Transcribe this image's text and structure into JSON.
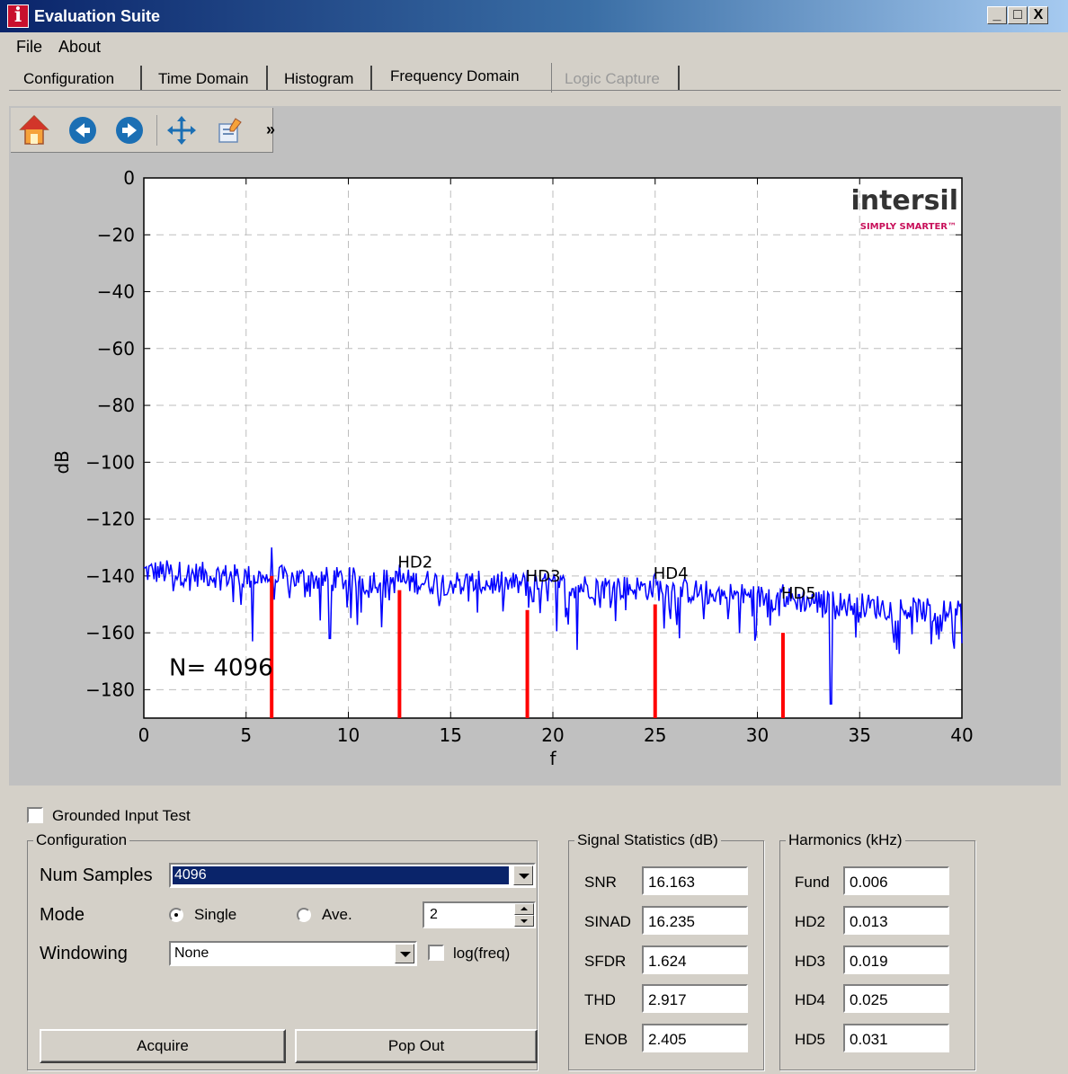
{
  "window": {
    "title": "Evaluation Suite",
    "controls": [
      "_",
      "□",
      "X"
    ]
  },
  "menu": {
    "file": "File",
    "about": "About"
  },
  "tabs": [
    {
      "label": "Configuration"
    },
    {
      "label": "Time Domain"
    },
    {
      "label": "Histogram"
    },
    {
      "label": "Frequency Domain",
      "active": true
    },
    {
      "label": "Logic Capture",
      "disabled": true
    }
  ],
  "toolbar": {
    "icons": [
      "home-icon",
      "back-arrow-icon",
      "forward-arrow-icon",
      "pan-icon",
      "configure-subplots-icon"
    ],
    "more": "»"
  },
  "chart_data": {
    "type": "line",
    "xlabel": "f",
    "ylabel": "dB",
    "xlim": [
      0,
      40
    ],
    "ylim": [
      -190,
      0
    ],
    "xticks": [
      0,
      5,
      10,
      15,
      20,
      25,
      30,
      35,
      40
    ],
    "yticks": [
      0,
      -20,
      -40,
      -60,
      -80,
      -100,
      -120,
      -140,
      -160,
      -180
    ],
    "grid": true,
    "noise_floor": {
      "x": [
        0,
        5,
        10,
        15,
        20,
        25,
        30,
        35,
        40
      ],
      "y": [
        -137,
        -139,
        -140,
        -141,
        -142,
        -143,
        -146,
        -149,
        -152
      ]
    },
    "series": [
      {
        "color": "#0000ff",
        "spurs": [
          {
            "x": 6.25,
            "y": -130
          },
          {
            "x": 12.5,
            "y": -136
          },
          {
            "x": 18.75,
            "y": -138
          },
          {
            "x": 25.0,
            "y": -139
          },
          {
            "x": 31.25,
            "y": -143
          },
          {
            "x": 33.6,
            "y": -185
          },
          {
            "x": 5.3,
            "y": -163
          },
          {
            "x": 9.1,
            "y": -162
          },
          {
            "x": 21.2,
            "y": -166
          },
          {
            "x": 38.5,
            "y": -164
          }
        ]
      }
    ],
    "harmonic_markers": {
      "color": "#ff0000",
      "points": [
        {
          "x": 6.25,
          "top": -140
        },
        {
          "x": 12.5,
          "top": -145
        },
        {
          "x": 18.75,
          "top": -152
        },
        {
          "x": 25.0,
          "top": -150
        },
        {
          "x": 31.25,
          "top": -160
        }
      ]
    },
    "annotations": [
      {
        "text": "HD2",
        "x": 12.5,
        "y": -137
      },
      {
        "text": "HD3",
        "x": 18.75,
        "y": -142
      },
      {
        "text": "HD4",
        "x": 25.0,
        "y": -141
      },
      {
        "text": "HD5",
        "x": 31.25,
        "y": -148
      }
    ],
    "sample_count_label": "N= 4096",
    "logo": {
      "text": "intersil",
      "tagline": "SIMPLY SMARTER™"
    }
  },
  "controls": {
    "grounded_input_test": {
      "label": "Grounded Input Test",
      "checked": false
    },
    "configuration": {
      "title": "Configuration",
      "num_samples": {
        "label": "Num Samples",
        "value": "4096"
      },
      "mode": {
        "label": "Mode",
        "single": "Single",
        "average": "Ave.",
        "selected": "single",
        "average_count": "2"
      },
      "windowing": {
        "label": "Windowing",
        "value": "None"
      },
      "log_freq": {
        "label": "log(freq)",
        "checked": false
      },
      "acquire": "Acquire",
      "pop_out": "Pop Out"
    },
    "signal_statistics": {
      "title": "Signal Statistics (dB)",
      "rows": [
        {
          "label": "SNR",
          "value": "16.163"
        },
        {
          "label": "SINAD",
          "value": "16.235"
        },
        {
          "label": "SFDR",
          "value": "1.624"
        },
        {
          "label": "THD",
          "value": "2.917"
        },
        {
          "label": "ENOB",
          "value": "2.405"
        }
      ]
    },
    "harmonics": {
      "title": "Harmonics (kHz)",
      "rows": [
        {
          "label": "Fund",
          "value": "0.006"
        },
        {
          "label": "HD2",
          "value": "0.013"
        },
        {
          "label": "HD3",
          "value": "0.019"
        },
        {
          "label": "HD4",
          "value": "0.025"
        },
        {
          "label": "HD5",
          "value": "0.031"
        }
      ]
    }
  }
}
